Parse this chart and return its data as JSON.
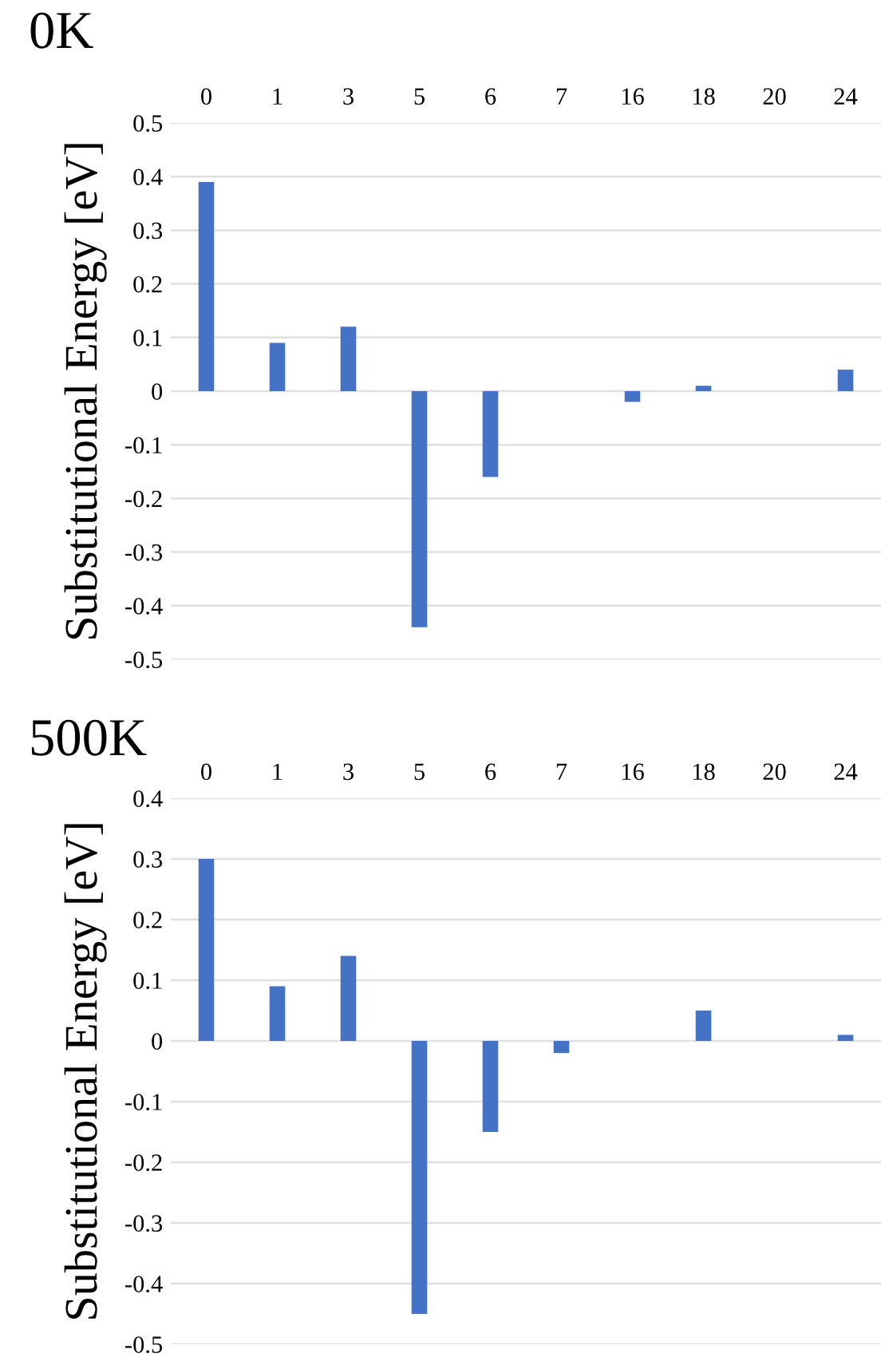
{
  "chart_data": [
    {
      "type": "bar",
      "title": "0K",
      "ylabel": "Substitutional Energy [eV]",
      "categories": [
        "0",
        "1",
        "3",
        "5",
        "6",
        "7",
        "16",
        "18",
        "20",
        "24"
      ],
      "color": "#4472c4",
      "values": [
        0.39,
        0.09,
        0.12,
        -0.44,
        -0.16,
        0,
        -0.02,
        0.01,
        0,
        0.04
      ],
      "ylim": [
        -0.5,
        0.5
      ],
      "yticks": [
        -0.5,
        -0.4,
        -0.3,
        -0.2,
        -0.1,
        0,
        0.1,
        0.2,
        0.3,
        0.4,
        0.5
      ],
      "grid": "y"
    },
    {
      "type": "bar",
      "title": "500K",
      "ylabel": "Substitutional Energy [eV]",
      "categories": [
        "0",
        "1",
        "3",
        "5",
        "6",
        "7",
        "16",
        "18",
        "20",
        "24"
      ],
      "color": "#4472c4",
      "values": [
        0.3,
        0.09,
        0.14,
        -0.45,
        -0.15,
        -0.02,
        0,
        0.05,
        0,
        0.01
      ],
      "ylim": [
        -0.5,
        0.4
      ],
      "yticks": [
        -0.5,
        -0.4,
        -0.3,
        -0.2,
        -0.1,
        0,
        0.1,
        0.2,
        0.3,
        0.4
      ],
      "grid": "y"
    }
  ]
}
